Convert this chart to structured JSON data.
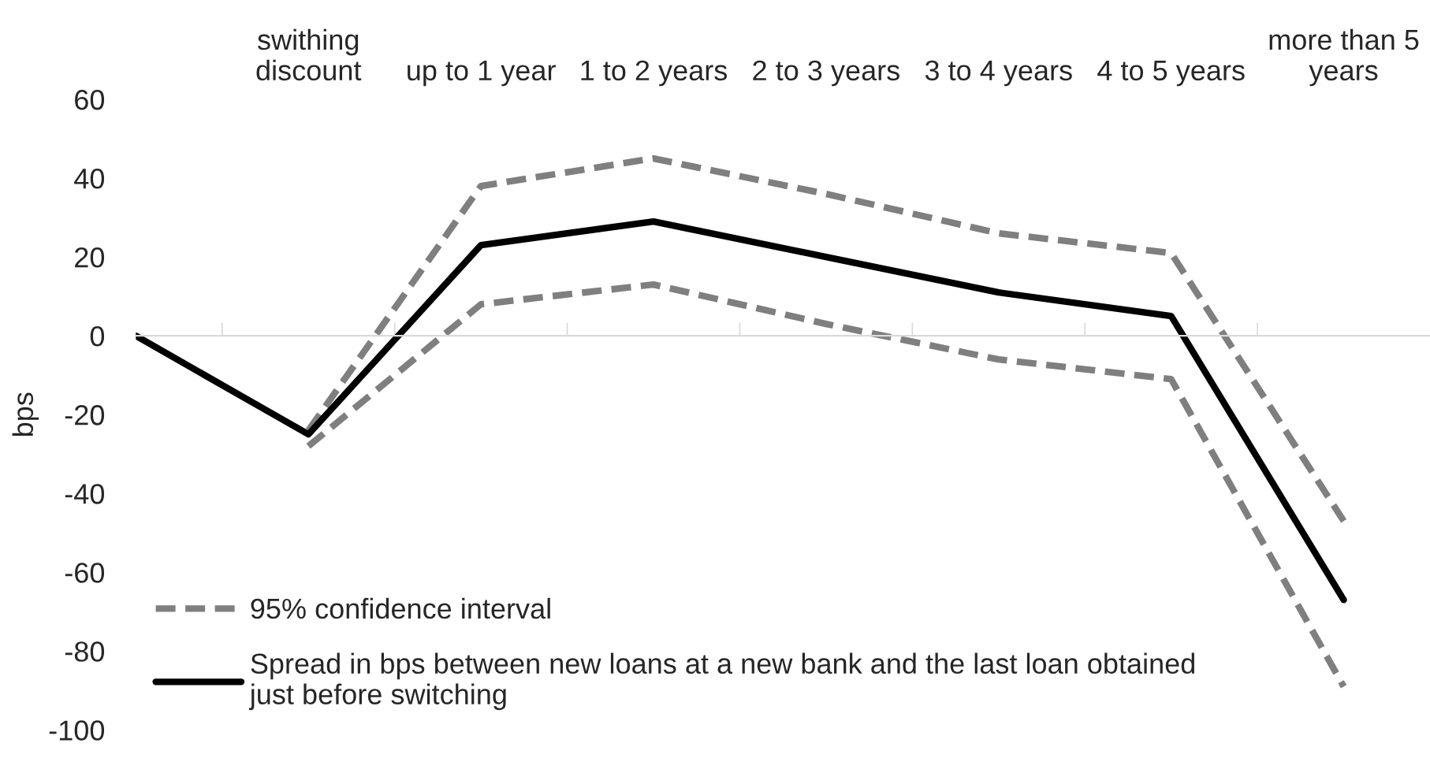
{
  "chart_data": {
    "type": "line",
    "categories": [
      null,
      "swithing discount",
      "up to 1 year",
      "1 to 2 years",
      "2 to 3 years",
      "3 to 4 years",
      "4 to 5 years",
      "more than 5 years"
    ],
    "series": [
      {
        "name": "95% confidence interval",
        "color": "#7f7f7f",
        "line_style": "dashed",
        "values": [
          null,
          -24,
          38,
          45,
          36,
          26,
          21,
          -47
        ]
      },
      {
        "color": "#7f7f7f",
        "line_style": "dashed",
        "values": [
          null,
          -28,
          8,
          13,
          3,
          -6,
          -11,
          -89
        ]
      },
      {
        "name": "Spread in bps between new loans at a new bank and the last loan obtained just before switching",
        "color": "#000000",
        "line_style": "solid",
        "values": [
          0,
          -25,
          23,
          29,
          20,
          11,
          5,
          -67
        ]
      }
    ],
    "ylabel": "bps",
    "ylim": [
      -100,
      60
    ],
    "yticks": [
      -100,
      -80,
      -60,
      -40,
      -20,
      0,
      20,
      40,
      60
    ],
    "legend": "bottom left",
    "marker": "none"
  }
}
